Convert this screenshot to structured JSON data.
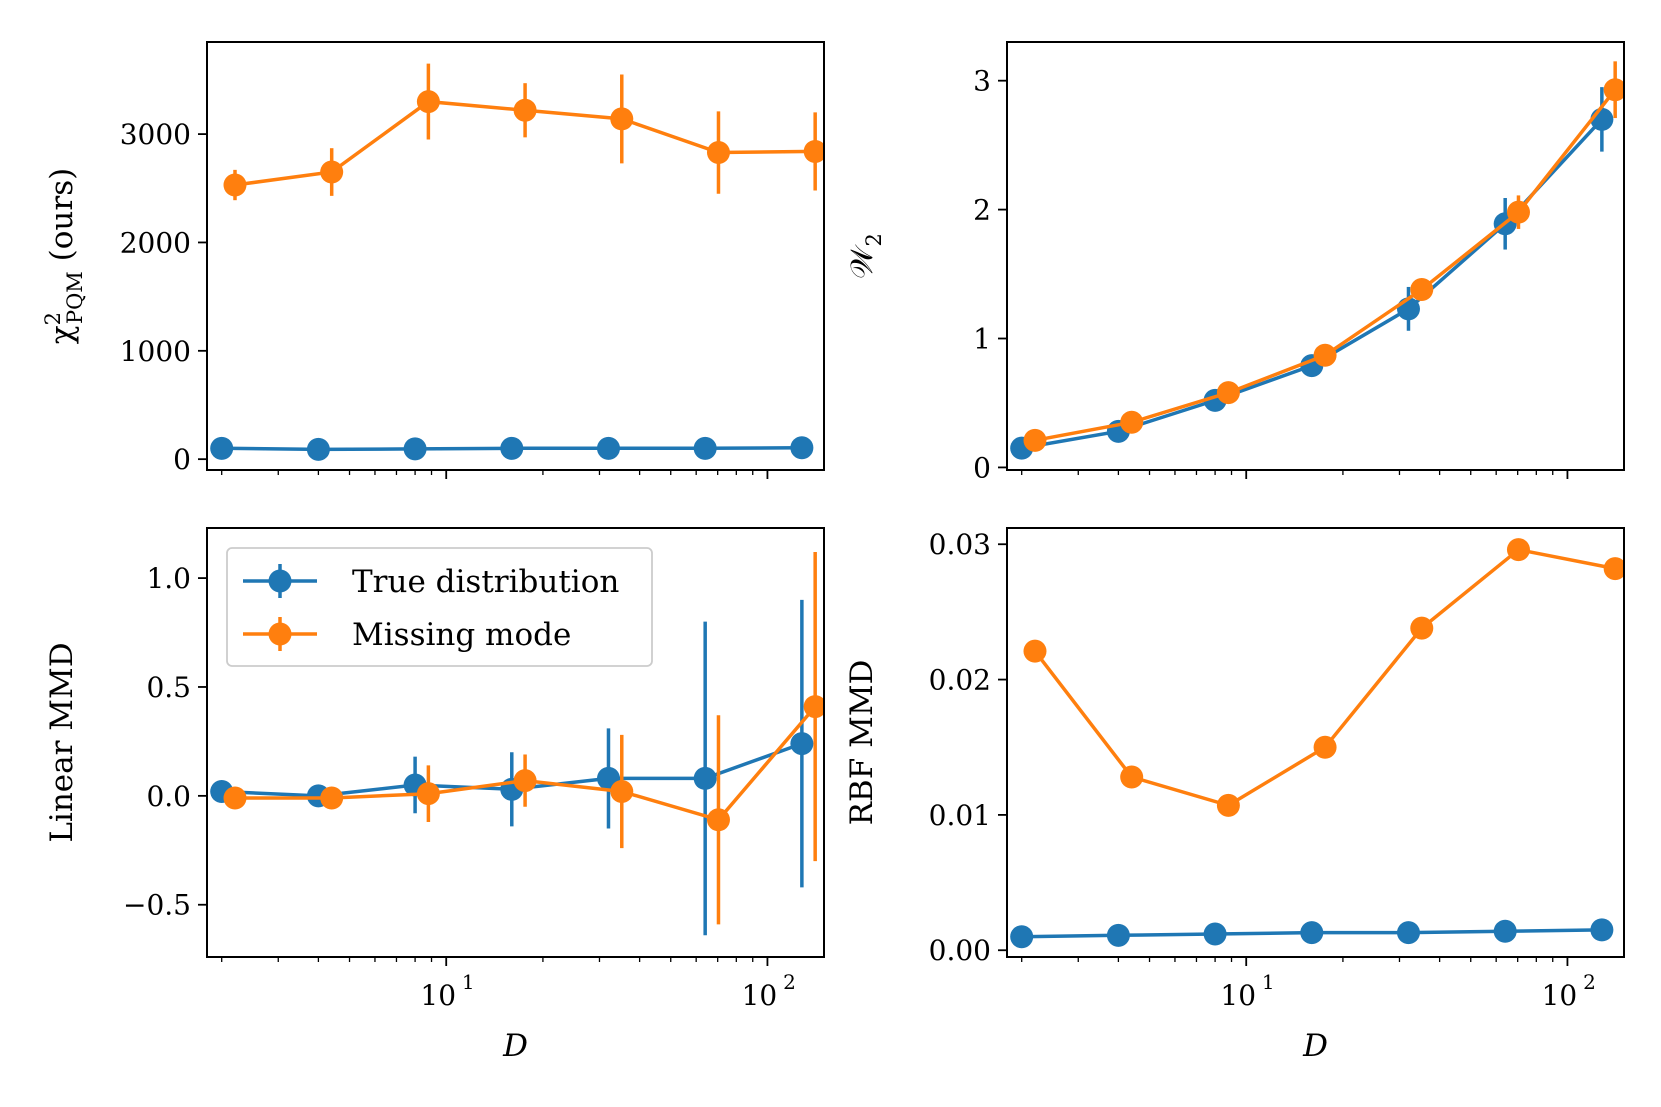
{
  "colors": {
    "true": "#1f77b4",
    "missing": "#ff7f0e"
  },
  "legend": {
    "true_label": "True distribution",
    "missing_label": "Missing mode"
  },
  "chart_data": [
    {
      "id": "chi2",
      "type": "line",
      "title": "",
      "xlabel": "",
      "ylabel_main": "χ",
      "ylabel_sup": "2",
      "ylabel_sub": "PQM",
      "ylabel_rest": " (ours)",
      "xscale": "log",
      "xlim": [
        1.8,
        150
      ],
      "ylim": [
        -100,
        3850
      ],
      "xticks_major": [
        10,
        100
      ],
      "xticklabels_visible": false,
      "yticks": [
        0,
        1000,
        2000,
        3000
      ],
      "yticklabels": [
        "0",
        "1000",
        "2000",
        "3000"
      ],
      "series": [
        {
          "name": "True distribution",
          "color_key": "true",
          "x": [
            2,
            4,
            8,
            16,
            32,
            64,
            128
          ],
          "y": [
            100,
            90,
            95,
            100,
            100,
            100,
            105
          ],
          "err": [
            10,
            10,
            10,
            10,
            10,
            10,
            10
          ]
        },
        {
          "name": "Missing mode",
          "color_key": "missing",
          "x": [
            2.2,
            4.4,
            8.8,
            17.6,
            35.2,
            70.4,
            140.8
          ],
          "y": [
            2530,
            2650,
            3300,
            3220,
            3140,
            2830,
            2840
          ],
          "err": [
            140,
            220,
            350,
            250,
            410,
            380,
            360
          ]
        }
      ]
    },
    {
      "id": "w2",
      "type": "line",
      "title": "",
      "xlabel": "",
      "ylabel_main": "𝒲",
      "ylabel_sub": "2",
      "xscale": "log",
      "xlim": [
        1.8,
        150
      ],
      "ylim": [
        -0.02,
        3.3
      ],
      "xticks_major": [
        10,
        100
      ],
      "xticklabels_visible": false,
      "yticks": [
        0,
        1,
        2,
        3
      ],
      "yticklabels": [
        "0",
        "1",
        "2",
        "3"
      ],
      "series": [
        {
          "name": "True distribution",
          "color_key": "true",
          "x": [
            2,
            4,
            8,
            16,
            32,
            64,
            128
          ],
          "y": [
            0.15,
            0.28,
            0.52,
            0.79,
            1.23,
            1.89,
            2.7
          ],
          "err": [
            0.02,
            0.03,
            0.05,
            0.06,
            0.17,
            0.2,
            0.25
          ]
        },
        {
          "name": "Missing mode",
          "color_key": "missing",
          "x": [
            2.2,
            4.4,
            8.8,
            17.6,
            35.2,
            70.4,
            140.8
          ],
          "y": [
            0.21,
            0.35,
            0.58,
            0.87,
            1.38,
            1.98,
            2.93
          ],
          "err": [
            0.02,
            0.03,
            0.04,
            0.05,
            0.05,
            0.13,
            0.22
          ]
        }
      ]
    },
    {
      "id": "linear_mmd",
      "type": "line",
      "title": "",
      "xlabel": "D",
      "ylabel": "Linear MMD",
      "xscale": "log",
      "xlim": [
        1.8,
        150
      ],
      "ylim": [
        -0.74,
        1.23
      ],
      "xticks_major": [
        10,
        100
      ],
      "xticklabels_visible": true,
      "xticklabels": [
        "10",
        "1",
        "10",
        "2"
      ],
      "yticks": [
        -0.5,
        0.0,
        0.5,
        1.0
      ],
      "yticklabels": [
        "−0.5",
        "0.0",
        "0.5",
        "1.0"
      ],
      "legend_position": "upper-left",
      "series": [
        {
          "name": "True distribution",
          "color_key": "true",
          "x": [
            2,
            4,
            8,
            16,
            32,
            64,
            128
          ],
          "y": [
            0.02,
            0.0,
            0.05,
            0.03,
            0.08,
            0.08,
            0.24
          ],
          "err": [
            0.02,
            0.03,
            0.13,
            0.17,
            0.23,
            0.72,
            0.66
          ]
        },
        {
          "name": "Missing mode",
          "color_key": "missing",
          "x": [
            2.2,
            4.4,
            8.8,
            17.6,
            35.2,
            70.4,
            140.8
          ],
          "y": [
            -0.01,
            -0.01,
            0.01,
            0.07,
            0.02,
            -0.11,
            0.41
          ],
          "err": [
            0.02,
            0.05,
            0.13,
            0.12,
            0.26,
            0.48,
            0.71
          ]
        }
      ]
    },
    {
      "id": "rbf_mmd",
      "type": "line",
      "title": "",
      "xlabel": "D",
      "ylabel": "RBF MMD",
      "xscale": "log",
      "xlim": [
        1.8,
        150
      ],
      "ylim": [
        -0.0005,
        0.0312
      ],
      "xticks_major": [
        10,
        100
      ],
      "xticklabels_visible": true,
      "xticklabels": [
        "10",
        "1",
        "10",
        "2"
      ],
      "yticks": [
        0.0,
        0.01,
        0.02,
        0.03
      ],
      "yticklabels": [
        "0.00",
        "0.01",
        "0.02",
        "0.03"
      ],
      "series": [
        {
          "name": "True distribution",
          "color_key": "true",
          "x": [
            2,
            4,
            8,
            16,
            32,
            64,
            128
          ],
          "y": [
            0.001,
            0.0011,
            0.0012,
            0.0013,
            0.0013,
            0.0014,
            0.0015
          ],
          "err": [
            0,
            0,
            0,
            0,
            0,
            0,
            0
          ]
        },
        {
          "name": "Missing mode",
          "color_key": "missing",
          "x": [
            2.2,
            4.4,
            8.8,
            17.6,
            35.2,
            70.4,
            140.8
          ],
          "y": [
            0.0221,
            0.0128,
            0.0107,
            0.015,
            0.0238,
            0.0296,
            0.0282
          ],
          "err": [
            0,
            0,
            0,
            0,
            0,
            0,
            0
          ]
        }
      ]
    }
  ]
}
